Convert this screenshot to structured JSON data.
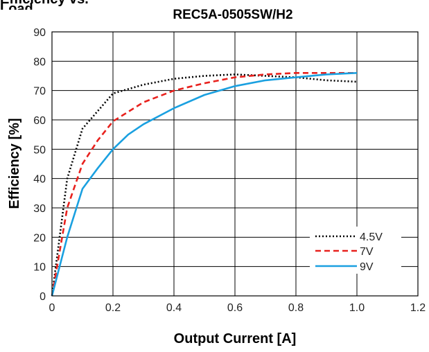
{
  "header": {
    "clipped_text": "Efficiency vs. Load"
  },
  "chart_data": {
    "type": "line",
    "title": "REC5A-0505SW/H2",
    "xlabel": "Output Current [A]",
    "ylabel": "Efficiency [%]",
    "xlim": [
      0,
      1.2
    ],
    "ylim": [
      0,
      90
    ],
    "x_ticks": [
      0,
      0.2,
      0.4,
      0.6,
      0.8,
      1.0,
      1.2
    ],
    "x_tick_labels": [
      "0",
      "0.2",
      "0.4",
      "0.6",
      "0.8",
      "1.0",
      "1.2"
    ],
    "y_ticks": [
      0,
      10,
      20,
      30,
      40,
      50,
      60,
      70,
      80,
      90
    ],
    "y_tick_labels": [
      "0",
      "10",
      "20",
      "30",
      "40",
      "50",
      "60",
      "70",
      "80",
      "90"
    ],
    "grid": true,
    "legend_position": "bottom-right",
    "series": [
      {
        "name": "4.5V",
        "color": "#000000",
        "dash": "dotted",
        "x": [
          0,
          0.05,
          0.1,
          0.15,
          0.2,
          0.3,
          0.4,
          0.5,
          0.6,
          0.7,
          0.8,
          0.9,
          1.0
        ],
        "y": [
          0,
          40,
          57,
          63,
          69,
          72,
          74,
          75,
          75.5,
          75,
          74.5,
          73.5,
          73
        ]
      },
      {
        "name": "7V",
        "color": "#e8211d",
        "dash": "dashed",
        "x": [
          0,
          0.05,
          0.1,
          0.15,
          0.2,
          0.3,
          0.4,
          0.5,
          0.6,
          0.7,
          0.8,
          0.9,
          1.0
        ],
        "y": [
          0,
          30,
          45,
          53,
          59.5,
          66,
          70,
          72.5,
          74.5,
          75.5,
          76,
          76,
          76
        ]
      },
      {
        "name": "9V",
        "color": "#1aa0e0",
        "dash": "solid",
        "x": [
          0,
          0.05,
          0.1,
          0.15,
          0.2,
          0.25,
          0.3,
          0.4,
          0.5,
          0.6,
          0.7,
          0.8,
          0.9,
          1.0
        ],
        "y": [
          0,
          20,
          36.5,
          43.5,
          50,
          55,
          58.5,
          64,
          68.5,
          71.5,
          73.5,
          74.5,
          75.5,
          76
        ]
      }
    ]
  }
}
